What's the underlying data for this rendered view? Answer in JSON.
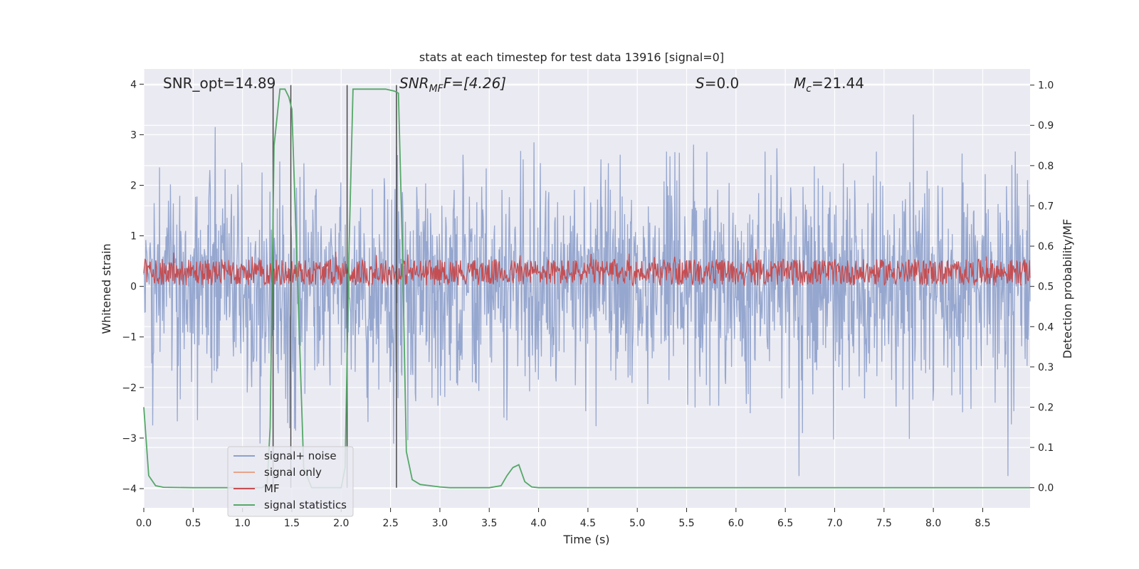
{
  "chart_data": {
    "type": "line",
    "title": "stats at each timestep for test data 13916 [signal=0]",
    "xlabel": "Time (s)",
    "ylabel": "Whitened strain",
    "y2label": "Detection probability/MF",
    "xlim": [
      0.0,
      8.98
    ],
    "ylim": [
      -4.38,
      4.3
    ],
    "y2lim": [
      -0.05,
      1.04
    ],
    "xticks": [
      "0.0",
      "0.5",
      "1.0",
      "1.5",
      "2.0",
      "2.5",
      "3.0",
      "3.5",
      "4.0",
      "4.5",
      "5.0",
      "5.5",
      "6.0",
      "6.5",
      "7.0",
      "7.5",
      "8.0",
      "8.5"
    ],
    "yticks": [
      "−4",
      "−3",
      "−2",
      "−1",
      "0",
      "1",
      "2",
      "3",
      "4"
    ],
    "y2ticks": [
      "0.0",
      "0.1",
      "0.2",
      "0.3",
      "0.4",
      "0.5",
      "0.6",
      "0.7",
      "0.8",
      "0.9",
      "1.0"
    ],
    "grid": true,
    "legend_position": "lower-left",
    "annotations": {
      "snr_opt": "SNR_opt=14.89",
      "snr_mf_base": "SNR",
      "snr_mf_sub": "MF",
      "snr_mf_tail": "F=[4.26]",
      "s_label": "S",
      "s_value": "=0.0",
      "mc_base": "M",
      "mc_sub": "c",
      "mc_value": "=21.44"
    },
    "series": [
      {
        "name": "signal+ noise",
        "color": "#8da0cb",
        "description": "noisy whitened strain, amplitude ~±3"
      },
      {
        "name": "signal only",
        "color": "#e8a48a"
      },
      {
        "name": "MF",
        "color": "#c44e52",
        "y_range": [
          0.05,
          0.9
        ]
      },
      {
        "name": "signal statistics",
        "color": "#55a868",
        "axis": "right",
        "x": [
          0.0,
          0.05,
          0.12,
          0.2,
          0.5,
          1.0,
          1.2,
          1.25,
          1.28,
          1.32,
          1.38,
          1.43,
          1.47,
          1.5,
          1.56,
          1.62,
          1.7,
          1.85,
          2.0,
          2.04,
          2.08,
          2.12,
          2.2,
          2.45,
          2.54,
          2.58,
          2.62,
          2.66,
          2.72,
          2.8,
          3.0,
          3.1,
          3.5,
          3.62,
          3.68,
          3.74,
          3.8,
          3.86,
          3.93,
          4.0,
          4.5,
          5.0,
          6.0,
          7.0,
          8.0,
          8.98
        ],
        "y": [
          0.2,
          0.03,
          0.005,
          0.001,
          0.0,
          0.0,
          0.0,
          0.01,
          0.15,
          0.85,
          0.99,
          0.99,
          0.97,
          0.94,
          0.5,
          0.05,
          0.0,
          0.0,
          0.0,
          0.05,
          0.6,
          0.99,
          0.99,
          0.99,
          0.985,
          0.98,
          0.6,
          0.09,
          0.02,
          0.008,
          0.002,
          0.0,
          0.0,
          0.005,
          0.03,
          0.05,
          0.057,
          0.015,
          0.002,
          0.0,
          0.0,
          0.0,
          0.0,
          0.0,
          0.0,
          0.0
        ]
      }
    ],
    "vlines_x": [
      1.31,
      1.49,
      2.06,
      2.56
    ]
  }
}
